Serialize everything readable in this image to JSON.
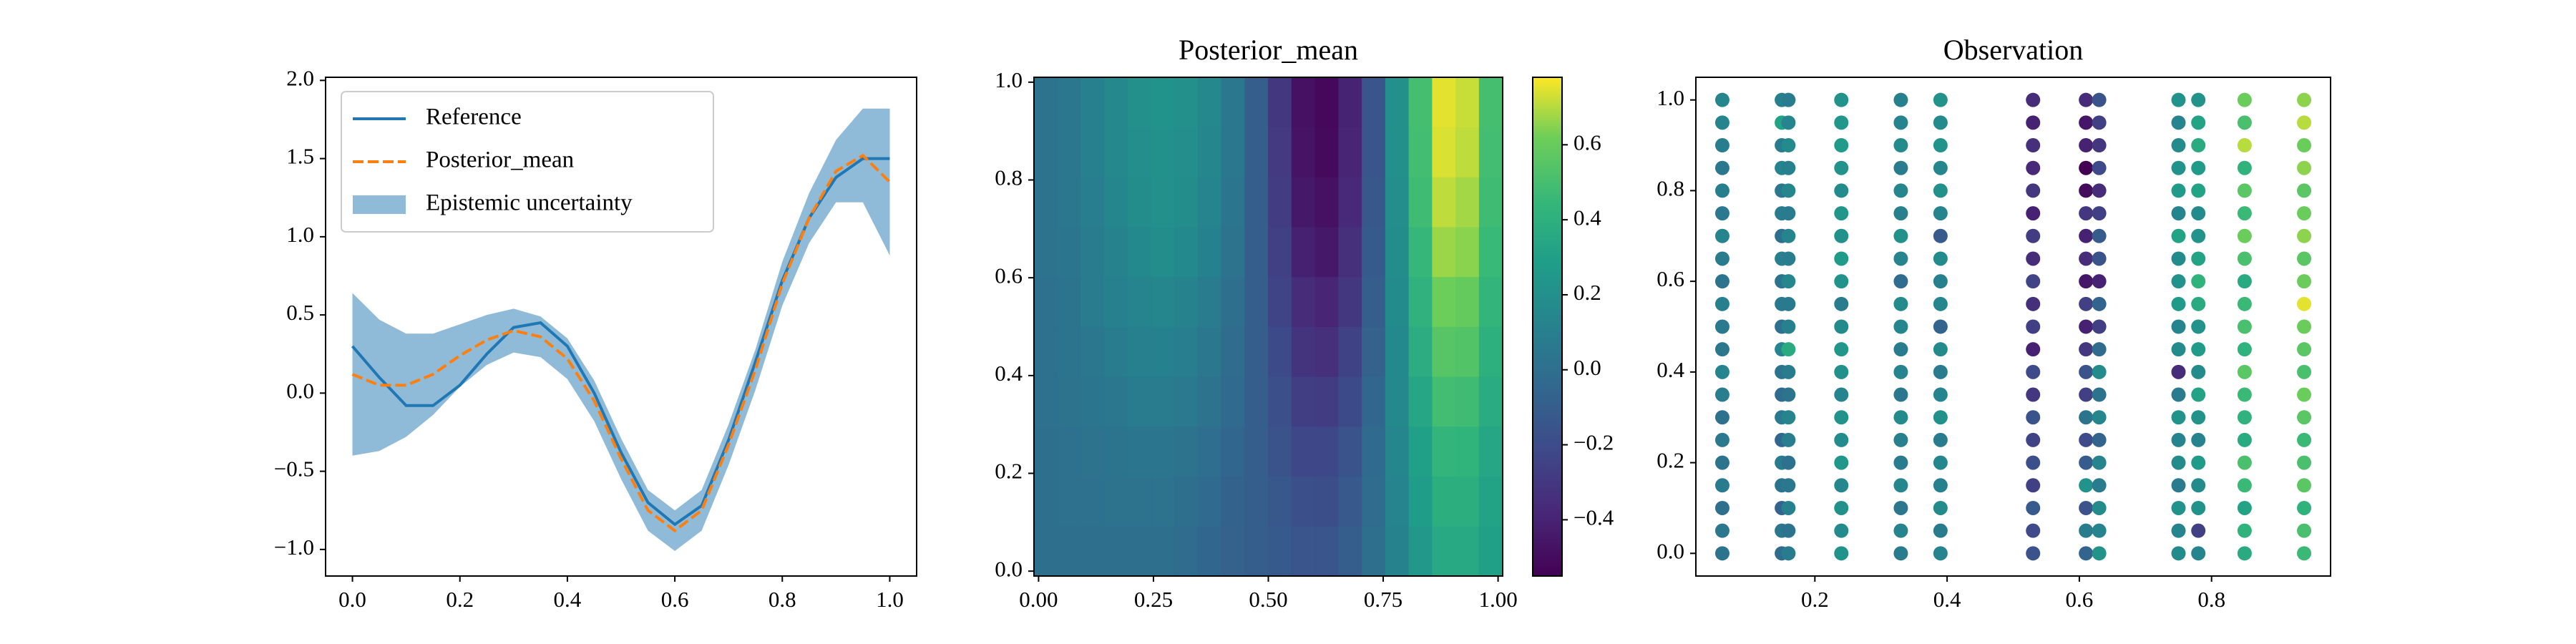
{
  "chart_data": [
    {
      "type": "line",
      "x": [
        0,
        0.05,
        0.1,
        0.15,
        0.2,
        0.25,
        0.3,
        0.35,
        0.4,
        0.45,
        0.5,
        0.55,
        0.6,
        0.65,
        0.7,
        0.75,
        0.8,
        0.85,
        0.9,
        0.95,
        1.0
      ],
      "series": [
        {
          "name": "Reference",
          "color": "#1f77b4",
          "style": "solid",
          "values": [
            0.3,
            0.1,
            -0.08,
            -0.08,
            0.05,
            0.25,
            0.42,
            0.45,
            0.3,
            0.0,
            -0.38,
            -0.7,
            -0.84,
            -0.72,
            -0.3,
            0.2,
            0.72,
            1.12,
            1.38,
            1.5,
            1.5
          ]
        },
        {
          "name": "Posterior_mean",
          "color": "#ff7f0e",
          "style": "dashed",
          "values": [
            0.12,
            0.05,
            0.05,
            0.12,
            0.24,
            0.34,
            0.4,
            0.36,
            0.22,
            -0.05,
            -0.42,
            -0.75,
            -0.88,
            -0.75,
            -0.33,
            0.15,
            0.7,
            1.12,
            1.42,
            1.52,
            1.35
          ]
        }
      ],
      "band": {
        "name": "Epistemic uncertainty",
        "color": "#8fbbd9",
        "lower": [
          -0.4,
          -0.37,
          -0.28,
          -0.14,
          0.04,
          0.18,
          0.26,
          0.23,
          0.09,
          -0.18,
          -0.55,
          -0.88,
          -1.01,
          -0.88,
          -0.46,
          0.02,
          0.56,
          0.96,
          1.22,
          1.22,
          0.88
        ],
        "upper": [
          0.64,
          0.47,
          0.38,
          0.38,
          0.44,
          0.5,
          0.54,
          0.49,
          0.35,
          0.08,
          -0.29,
          -0.62,
          -0.75,
          -0.62,
          -0.2,
          0.28,
          0.84,
          1.28,
          1.62,
          1.82,
          1.82
        ]
      },
      "xlim": [
        -0.05,
        1.05
      ],
      "ylim": [
        -1.17,
        2.02
      ],
      "xticks": [
        {
          "value": 0,
          "label": "0.0"
        },
        0.2,
        0.4,
        0.6,
        0.8,
        {
          "value": 1,
          "label": "1.0"
        }
      ],
      "yticks": [
        {
          "value": -1,
          "label": "−1.0"
        },
        {
          "value": -0.5,
          "label": "−0.5"
        },
        {
          "value": 0,
          "label": "0.0"
        },
        0.5,
        {
          "value": 1,
          "label": "1.0"
        },
        1.5,
        {
          "value": 2,
          "label": "2.0"
        }
      ],
      "legend": "upper left"
    },
    {
      "type": "heatmap",
      "title": "Posterior_mean",
      "colormap": "viridis",
      "clim": [
        -0.55,
        0.78
      ],
      "xlim": [
        -0.01,
        1.01
      ],
      "ylim": [
        -0.01,
        1.01
      ],
      "xticks": [
        {
          "value": 0,
          "label": "0.00"
        },
        0.25,
        {
          "value": 0.5,
          "label": "0.50"
        },
        0.75,
        {
          "value": 1,
          "label": "1.00"
        }
      ],
      "yticks": [
        {
          "value": 0,
          "label": "0.0"
        },
        0.2,
        0.4,
        0.6,
        0.8,
        {
          "value": 1,
          "label": "1.0"
        }
      ],
      "cticks": [
        {
          "value": -0.4,
          "label": "−0.4"
        },
        {
          "value": -0.2,
          "label": "−0.2"
        },
        {
          "value": 0,
          "label": "0.0"
        },
        0.2,
        0.4,
        0.6
      ],
      "z": [
        [
          0,
          0,
          0,
          0,
          0,
          0,
          -0.02,
          -0.05,
          -0.08,
          -0.1,
          -0.12,
          -0.15,
          -0.15,
          -0.1,
          0,
          0.12,
          0.25,
          0.35,
          0.35,
          0.3
        ],
        [
          0,
          0.01,
          0.01,
          0.02,
          0.02,
          0.02,
          0,
          -0.03,
          -0.07,
          -0.1,
          -0.14,
          -0.18,
          -0.19,
          -0.13,
          -0.02,
          0.13,
          0.28,
          0.39,
          0.39,
          0.32
        ],
        [
          0,
          0.01,
          0.02,
          0.03,
          0.04,
          0.04,
          0.02,
          -0.01,
          -0.05,
          -0.1,
          -0.16,
          -0.22,
          -0.22,
          -0.16,
          -0.03,
          0.14,
          0.3,
          0.43,
          0.42,
          0.34
        ],
        [
          0.01,
          0.02,
          0.04,
          0.05,
          0.07,
          0.08,
          0.06,
          0.02,
          -0.03,
          -0.1,
          -0.18,
          -0.27,
          -0.28,
          -0.21,
          -0.05,
          0.15,
          0.34,
          0.49,
          0.48,
          0.37
        ],
        [
          0.01,
          0.03,
          0.05,
          0.08,
          0.1,
          0.11,
          0.09,
          0.05,
          -0.02,
          -0.1,
          -0.21,
          -0.32,
          -0.34,
          -0.25,
          -0.08,
          0.16,
          0.38,
          0.55,
          0.54,
          0.4
        ],
        [
          0.01,
          0.03,
          0.07,
          0.1,
          0.13,
          0.14,
          0.12,
          0.08,
          0,
          -0.1,
          -0.24,
          -0.36,
          -0.39,
          -0.3,
          -0.1,
          0.17,
          0.41,
          0.61,
          0.59,
          0.43
        ],
        [
          0.02,
          0.04,
          0.08,
          0.12,
          0.16,
          0.18,
          0.16,
          0.11,
          0.02,
          -0.1,
          -0.26,
          -0.41,
          -0.45,
          -0.34,
          -0.12,
          0.18,
          0.45,
          0.67,
          0.65,
          0.46
        ],
        [
          0.02,
          0.05,
          0.09,
          0.14,
          0.18,
          0.2,
          0.18,
          0.13,
          0.04,
          -0.1,
          -0.28,
          -0.45,
          -0.48,
          -0.37,
          -0.14,
          0.19,
          0.48,
          0.71,
          0.68,
          0.48
        ],
        [
          0.02,
          0.05,
          0.1,
          0.15,
          0.19,
          0.21,
          0.19,
          0.14,
          0.05,
          -0.1,
          -0.29,
          -0.47,
          -0.51,
          -0.39,
          -0.15,
          0.2,
          0.49,
          0.74,
          0.71,
          0.49
        ],
        [
          0.02,
          0.05,
          0.1,
          0.15,
          0.2,
          0.22,
          0.2,
          0.15,
          0.05,
          -0.1,
          -0.3,
          -0.48,
          -0.52,
          -0.4,
          -0.15,
          0.2,
          0.5,
          0.75,
          0.72,
          0.5
        ]
      ]
    },
    {
      "type": "scatter",
      "title": "Observation",
      "colormap": "viridis",
      "clim": [
        -0.6,
        0.78
      ],
      "xlim": [
        0.02,
        0.98
      ],
      "ylim": [
        -0.05,
        1.05
      ],
      "xticks": [
        0.2,
        0.4,
        0.6,
        0.8
      ],
      "yticks": [
        {
          "value": 0,
          "label": "0.0"
        },
        0.2,
        0.4,
        0.6,
        0.8,
        {
          "value": 1,
          "label": "1.0"
        }
      ],
      "x": [
        0.06,
        0.15,
        0.16,
        0.24,
        0.33,
        0.39,
        0.53,
        0.61,
        0.63,
        0.75,
        0.78,
        0.85,
        0.94
      ],
      "y": [
        0,
        0.05,
        0.1,
        0.15,
        0.2,
        0.25,
        0.3,
        0.35,
        0.4,
        0.45,
        0.5,
        0.55,
        0.6,
        0.65,
        0.7,
        0.75,
        0.8,
        0.85,
        0.9,
        0.95,
        1.0
      ],
      "values": [
        [
          0.0,
          0.02,
          -0.03,
          0.05,
          0.0,
          0.03,
          -0.02,
          0.06,
          0.1,
          0.02,
          0.04,
          0.08,
          0.0,
          0.05,
          0.1,
          0.03,
          0.07,
          0.02,
          0.06,
          0.1,
          0.12
        ],
        [
          -0.05,
          0.02,
          -0.1,
          0.0,
          0.05,
          -0.08,
          0.03,
          -0.05,
          0.0,
          0.1,
          -0.02,
          0.04,
          0.0,
          0.08,
          -0.03,
          0.05,
          0.02,
          0.1,
          0.05,
          0.3,
          0.08
        ],
        [
          0.05,
          0.0,
          0.08,
          0.02,
          -0.02,
          0.06,
          0.1,
          0.0,
          0.05,
          0.35,
          0.08,
          0.04,
          0.12,
          0.06,
          0.1,
          0.05,
          0.12,
          0.08,
          0.15,
          0.1,
          0.05
        ],
        [
          0.2,
          0.15,
          0.18,
          0.12,
          0.22,
          0.15,
          0.2,
          0.1,
          0.18,
          0.22,
          0.15,
          0.05,
          0.2,
          0.25,
          0.18,
          0.22,
          0.15,
          0.2,
          0.25,
          0.22,
          0.2
        ],
        [
          0.05,
          0.1,
          0.02,
          0.12,
          0.05,
          0.08,
          0.15,
          0.02,
          0.1,
          0.05,
          0.12,
          0.15,
          -0.05,
          0.1,
          0.18,
          0.08,
          0.12,
          0.05,
          0.15,
          0.1,
          0.08
        ],
        [
          0.1,
          0.05,
          0.15,
          0.08,
          0.12,
          0.05,
          0.18,
          0.1,
          0.05,
          0.15,
          -0.1,
          0.12,
          0.08,
          0.15,
          -0.15,
          0.1,
          0.18,
          0.12,
          0.2,
          0.15,
          0.2
        ],
        [
          -0.2,
          -0.25,
          -0.15,
          -0.3,
          -0.22,
          -0.28,
          -0.2,
          -0.35,
          -0.25,
          -0.45,
          -0.3,
          -0.38,
          -0.28,
          -0.4,
          -0.32,
          -0.45,
          -0.35,
          -0.42,
          -0.38,
          -0.45,
          -0.4
        ],
        [
          -0.1,
          0.05,
          -0.2,
          0.2,
          -0.15,
          -0.25,
          0.0,
          -0.3,
          -0.2,
          -0.35,
          -0.45,
          -0.3,
          -0.5,
          -0.4,
          -0.45,
          -0.35,
          -0.55,
          -0.6,
          -0.45,
          -0.5,
          -0.4
        ],
        [
          0.2,
          0.1,
          0.15,
          0.05,
          0.1,
          -0.1,
          0.12,
          0.0,
          0.15,
          -0.05,
          -0.3,
          -0.1,
          -0.45,
          -0.2,
          -0.15,
          -0.3,
          -0.4,
          -0.25,
          -0.35,
          -0.3,
          -0.2
        ],
        [
          0.15,
          0.1,
          0.2,
          0.05,
          0.15,
          0.1,
          0.2,
          0.05,
          -0.4,
          0.15,
          0.1,
          0.25,
          0.2,
          0.15,
          0.3,
          0.1,
          0.25,
          0.2,
          0.15,
          0.1,
          0.2
        ],
        [
          0.1,
          -0.3,
          0.2,
          0.15,
          0.25,
          0.1,
          0.2,
          0.3,
          0.15,
          0.25,
          0.2,
          0.35,
          0.4,
          0.3,
          0.2,
          0.15,
          0.3,
          0.25,
          0.35,
          0.3,
          0.2
        ],
        [
          0.35,
          0.4,
          0.3,
          0.45,
          0.5,
          0.35,
          0.4,
          0.45,
          0.55,
          0.4,
          0.5,
          0.45,
          0.35,
          0.5,
          0.6,
          0.45,
          0.55,
          0.4,
          0.7,
          0.5,
          0.6
        ],
        [
          0.45,
          0.5,
          0.4,
          0.55,
          0.5,
          0.45,
          0.55,
          0.6,
          0.5,
          0.55,
          0.6,
          0.75,
          0.6,
          0.55,
          0.65,
          0.6,
          0.55,
          0.65,
          0.6,
          0.7,
          0.65
        ]
      ]
    }
  ]
}
